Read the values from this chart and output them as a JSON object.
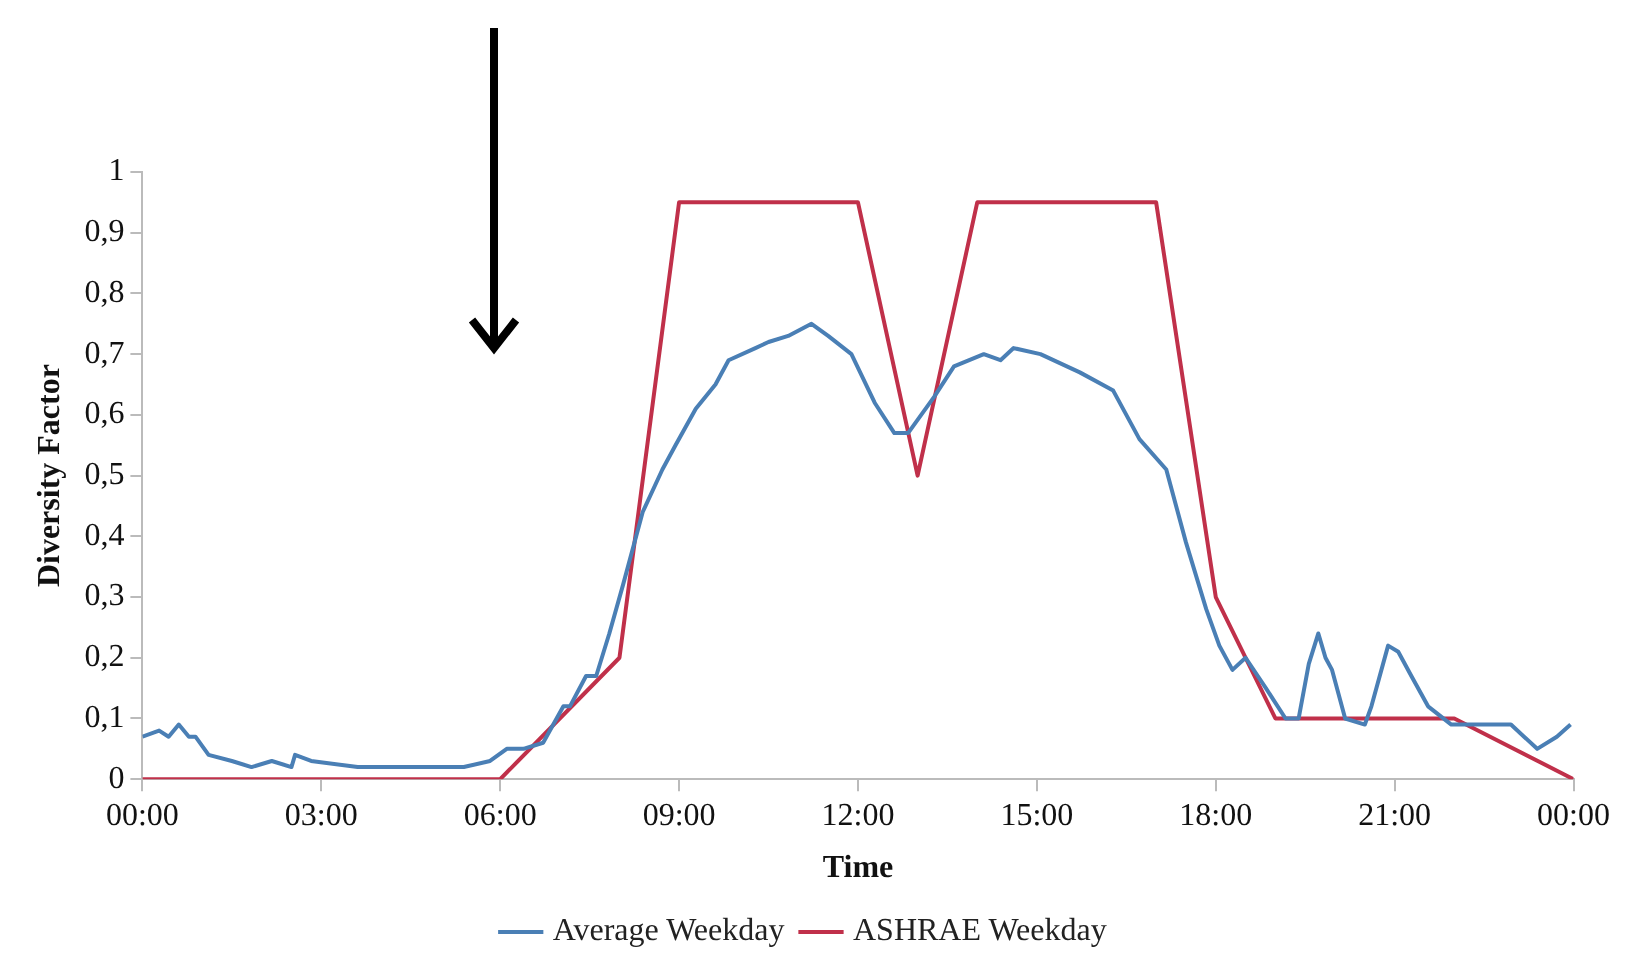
{
  "chart_data": {
    "type": "line",
    "xlabel": "Time",
    "ylabel": "Diversity Factor",
    "xlim": [
      0,
      24
    ],
    "ylim": [
      0,
      1
    ],
    "xticks": [
      {
        "value": 0,
        "label": "00:00"
      },
      {
        "value": 3,
        "label": "03:00"
      },
      {
        "value": 6,
        "label": "06:00"
      },
      {
        "value": 9,
        "label": "09:00"
      },
      {
        "value": 12,
        "label": "12:00"
      },
      {
        "value": 15,
        "label": "15:00"
      },
      {
        "value": 18,
        "label": "18:00"
      },
      {
        "value": 21,
        "label": "21:00"
      },
      {
        "value": 24,
        "label": "00:00"
      }
    ],
    "yticks": [
      0,
      {
        "value": 0.1,
        "label": "0,1"
      },
      {
        "value": 0.2,
        "label": "0,2"
      },
      {
        "value": 0.3,
        "label": "0,3"
      },
      {
        "value": 0.4,
        "label": "0,4"
      },
      {
        "value": 0.5,
        "label": "0,5"
      },
      {
        "value": 0.6,
        "label": "0,6"
      },
      {
        "value": 0.7,
        "label": "0,7"
      },
      {
        "value": 0.8,
        "label": "0,8"
      },
      {
        "value": 0.9,
        "label": "0,9"
      },
      1
    ],
    "grid": false,
    "legend": "bottom",
    "marker": "none",
    "line_style": "solid",
    "series": [
      {
        "name": "Average Weekday",
        "color": "#4a7fb5",
        "x": [
          0,
          0.28,
          0.44,
          0.61,
          0.78,
          0.89,
          1.11,
          1.5,
          1.83,
          2.17,
          2.5,
          2.56,
          2.83,
          3.61,
          4.28,
          4.94,
          5.39,
          5.83,
          6.11,
          6.39,
          6.72,
          7.06,
          7.17,
          7.44,
          7.61,
          7.83,
          8.06,
          8.39,
          8.72,
          8.94,
          9.28,
          9.61,
          9.83,
          10.28,
          10.5,
          10.83,
          11.22,
          11.5,
          11.89,
          12.28,
          12.61,
          12.84,
          13.28,
          13.61,
          14.11,
          14.39,
          14.61,
          15.06,
          15.72,
          16.28,
          16.72,
          17.17,
          17.5,
          17.84,
          18.06,
          18.28,
          18.5,
          18.84,
          19.17,
          19.39,
          19.56,
          19.72,
          19.84,
          19.95,
          20.17,
          20.5,
          20.61,
          20.89,
          21.06,
          21.28,
          21.56,
          21.95,
          22.28,
          22.95,
          23.17,
          23.39,
          23.72,
          23.95
        ],
        "values": [
          0.07,
          0.08,
          0.07,
          0.09,
          0.07,
          0.07,
          0.04,
          0.03,
          0.02,
          0.03,
          0.02,
          0.04,
          0.03,
          0.02,
          0.02,
          0.02,
          0.02,
          0.03,
          0.05,
          0.05,
          0.06,
          0.12,
          0.12,
          0.17,
          0.17,
          0.24,
          0.32,
          0.44,
          0.51,
          0.55,
          0.61,
          0.65,
          0.69,
          0.71,
          0.72,
          0.73,
          0.75,
          0.73,
          0.7,
          0.62,
          0.57,
          0.57,
          0.63,
          0.68,
          0.7,
          0.69,
          0.71,
          0.7,
          0.67,
          0.64,
          0.56,
          0.51,
          0.39,
          0.28,
          0.22,
          0.18,
          0.2,
          0.15,
          0.1,
          0.1,
          0.19,
          0.24,
          0.2,
          0.18,
          0.1,
          0.09,
          0.12,
          0.22,
          0.21,
          0.17,
          0.12,
          0.09,
          0.09,
          0.09,
          0.07,
          0.05,
          0.07,
          0.09
        ]
      },
      {
        "name": "ASHRAE Weekday",
        "color": "#c0304a",
        "x": [
          0,
          6,
          8,
          9,
          12,
          13,
          14,
          17,
          18,
          19,
          22,
          24
        ],
        "values": [
          0,
          0,
          0.2,
          0.95,
          0.95,
          0.5,
          0.95,
          0.95,
          0.3,
          0.1,
          0.1,
          0
        ]
      }
    ]
  }
}
